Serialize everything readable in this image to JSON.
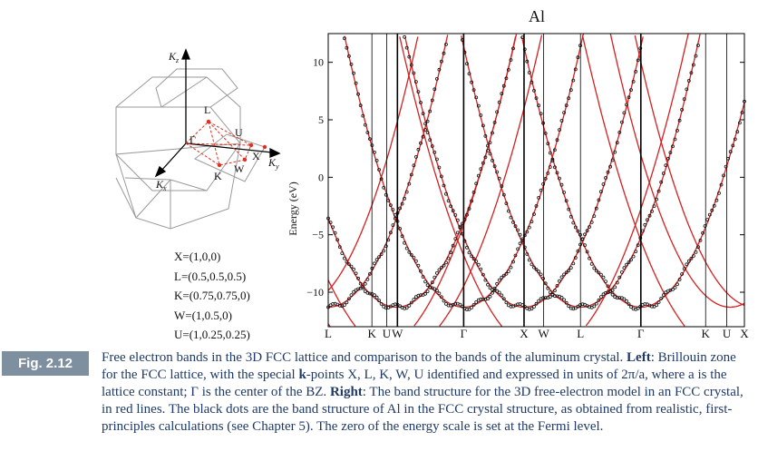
{
  "figure": {
    "label": "Fig. 2.12",
    "caption_parts": [
      {
        "t": "Free electron bands in the 3D FCC lattice and comparison to the bands of the aluminum crystal. "
      },
      {
        "t": "Left",
        "b": true
      },
      {
        "t": ": Brillouin zone for the FCC lattice, with the special "
      },
      {
        "t": "k",
        "b": true
      },
      {
        "t": "-points X, L, K, W, U identified and expressed in units of 2π/a, where a is the lattice constant; Γ is the center of the BZ. "
      },
      {
        "t": "Right",
        "b": true
      },
      {
        "t": ": The band structure for the 3D free-electron model in an FCC crystal, in red lines. The black dots are the band structure of Al in the FCC crystal structure, as obtained from realistic, first-principles calculations (see Chapter 5). The zero of the energy scale is set at the Fermi level."
      }
    ]
  },
  "bz": {
    "axes": {
      "kz": "K",
      "kz_sub": "z",
      "ky": "K",
      "ky_sub": "y",
      "kx": "K",
      "kx_sub": "x"
    },
    "points": {
      "gamma": "Γ",
      "L": "L",
      "U": "U",
      "X": "X",
      "W": "W",
      "K": "K"
    },
    "coords": [
      "X=(1,0,0)",
      "L=(0.5,0.5,0.5)",
      "K=(0.75,0.75,0)",
      "W=(1,0.5,0)",
      "U=(1,0.25,0.25)"
    ]
  },
  "chart_data": {
    "type": "line",
    "title": "Al",
    "ylabel": "Energy (eV)",
    "ylim": [
      -13,
      12.5
    ],
    "yticks": [
      10,
      5,
      0,
      -5,
      -10
    ],
    "xticks": [
      "L",
      "K",
      "U",
      "W",
      "Γ",
      "X",
      "W",
      "L",
      "Γ",
      "K",
      "U",
      "X"
    ],
    "xtick_positions": [
      0,
      0.89,
      1.19,
      1.41,
      2.76,
      3.99,
      4.39,
      5.14,
      6.37,
      7.69,
      8.12,
      8.48
    ],
    "series": [
      {
        "style": "red lines",
        "description_values": "free-electron bands"
      },
      {
        "style": "black dots",
        "description_values": "first-principles Al bands"
      }
    ],
    "gamma_minimum_eV": -11.3,
    "fermi_level_eV": 0
  }
}
